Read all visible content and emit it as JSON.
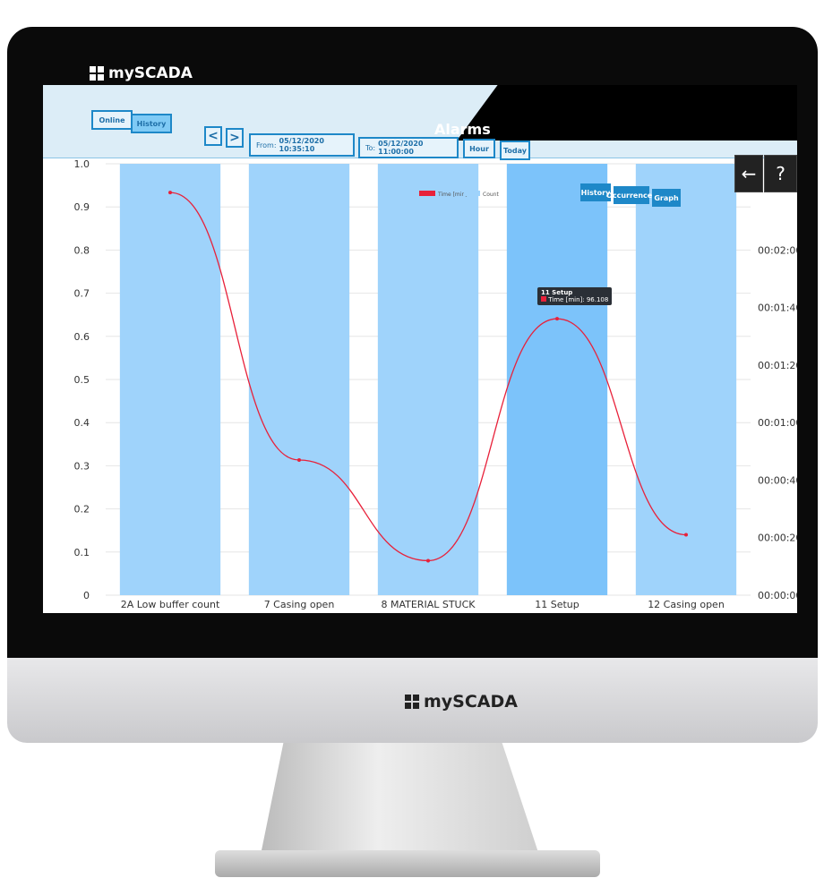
{
  "brand": "mySCADA",
  "header": {
    "title": "Alarms"
  },
  "toolbar": {
    "online": "Online",
    "history": "History",
    "prev": "<",
    "next": ">",
    "from_label": "From:",
    "from_value": "05/12/2020 10:35:10",
    "to_label": "To:",
    "to_value": "05/12/2020 11:00:00",
    "hour": "Hour",
    "today": "Today",
    "view_history": "History",
    "view_occurrences": "Occurrences",
    "view_graph": "Graph",
    "back_icon": "arrow-left-icon",
    "help_icon": "question-icon"
  },
  "tooltip": {
    "title": "11 Setup",
    "text": "Time [min]: 96.108"
  },
  "colors": {
    "bar": "#9fd3fb",
    "bar_highlight": "#7cc3fa",
    "line": "#e8213a",
    "accent": "#1e88c8"
  },
  "chart_data": {
    "type": "bar+line",
    "categories": [
      "2A Low buffer count",
      "7 Casing open",
      "8 MATERIAL STUCK",
      "11 Setup",
      "12 Casing open"
    ],
    "series": [
      {
        "name": "Count",
        "type": "bar",
        "axis": "left",
        "values": [
          1,
          1,
          1,
          1,
          1
        ]
      },
      {
        "name": "Time [min]",
        "type": "line",
        "axis": "right",
        "values": [
          140,
          47,
          12,
          96.108,
          21
        ]
      }
    ],
    "left_ylim": [
      0,
      1.0
    ],
    "left_ticks": [
      "0",
      "0.1",
      "0.2",
      "0.3",
      "0.4",
      "0.5",
      "0.6",
      "0.7",
      "0.8",
      "0.9",
      "1.0"
    ],
    "right_ylim": [
      0,
      150
    ],
    "right_ticks": [
      "00:00:00",
      "00:00:20",
      "00:00:40",
      "00:01:00",
      "00:01:20",
      "00:01:40",
      "00:02:00"
    ],
    "legend_position": "top-center",
    "grid": true
  }
}
